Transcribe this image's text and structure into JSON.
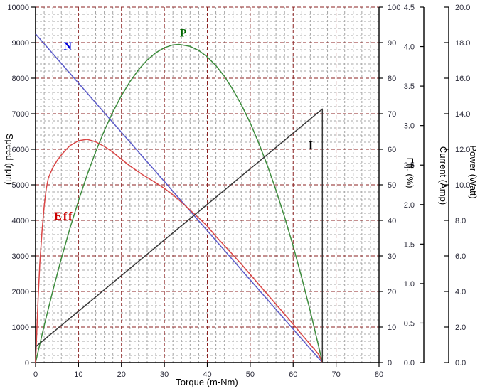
{
  "chart_data": {
    "type": "line",
    "title": "",
    "grid": {
      "enabled": true,
      "minor_color": "#a4a4a4",
      "major_color": "#8b2222",
      "style": "dashed"
    },
    "background_color": "#ffffff",
    "x_axis": {
      "label": "Torque (m-Nm)",
      "min": 0,
      "max": 80,
      "major_step": 10,
      "minor_step": 2,
      "ticks": [
        0,
        10,
        20,
        30,
        40,
        50,
        60,
        70,
        80
      ],
      "tick_labels": [
        "0",
        "10",
        "20",
        "30",
        "40",
        "50",
        "60",
        "70",
        "80"
      ]
    },
    "axes": {
      "speed": {
        "label": "Speed (rpm)",
        "side": "left",
        "min": 0,
        "max": 10000,
        "major_step": 1000,
        "minor_step": 200,
        "ticks": [
          0,
          1000,
          2000,
          3000,
          4000,
          5000,
          6000,
          7000,
          8000,
          9000,
          10000
        ],
        "tick_labels": [
          "0",
          "1000",
          "2000",
          "3000",
          "4000",
          "5000",
          "6000",
          "7000",
          "8000",
          "9000",
          "10000"
        ],
        "label_color": "#000000"
      },
      "eff": {
        "label": "Eff. (%)",
        "side": "right",
        "min": 0,
        "max": 100,
        "major_step": 10,
        "ticks": [
          0,
          10,
          20,
          30,
          40,
          50,
          60,
          70,
          80,
          90,
          100
        ],
        "tick_labels": [
          "0",
          "10",
          "20",
          "30",
          "40",
          "50",
          "60",
          "70",
          "80",
          "90",
          "100"
        ],
        "label_color": "#cc2233"
      },
      "current": {
        "label": "Current (Amp)",
        "side": "right",
        "min": 0,
        "max": 4.5,
        "major_step": 0.5,
        "ticks": [
          0,
          0.5,
          1.0,
          1.5,
          2.0,
          2.5,
          3.0,
          3.5,
          4.0,
          4.5
        ],
        "tick_labels": [
          "0.0",
          "0.5",
          "1.0",
          "1.5",
          "2.0",
          "2.5",
          "3.0",
          "3.5",
          "4.0",
          "4.5"
        ],
        "label_color": "#000000"
      },
      "power": {
        "label": "Power (Watt)",
        "side": "right",
        "min": 0,
        "max": 20,
        "major_step": 2,
        "ticks": [
          0,
          2,
          4,
          6,
          8,
          10,
          12,
          14,
          16,
          18,
          20
        ],
        "tick_labels": [
          "0.0",
          "2.0",
          "4.0",
          "6.0",
          "8.0",
          "10.0",
          "12.0",
          "14.0",
          "16.0",
          "18.0",
          "20.0"
        ],
        "label_color": "#2e8b2e"
      }
    },
    "series": [
      {
        "name": "N",
        "axis": "speed",
        "color": "#5a5ac8",
        "label": "N",
        "label_color": "#0000dd",
        "label_at": {
          "x": 7.5,
          "y": 8900
        },
        "points": [
          [
            0,
            9246
          ],
          [
            66.8,
            0
          ]
        ]
      },
      {
        "name": "P",
        "axis": "power",
        "color": "#3d8c3d",
        "label": "P",
        "label_color": "#006600",
        "label_at": {
          "x": 34.4,
          "y": 18.55
        },
        "points": [
          [
            0,
            0
          ],
          [
            2,
            2.08
          ],
          [
            4,
            4.03
          ],
          [
            6,
            5.85
          ],
          [
            8,
            7.55
          ],
          [
            10,
            9.11
          ],
          [
            12,
            10.55
          ],
          [
            14,
            11.86
          ],
          [
            16,
            13.04
          ],
          [
            18,
            14.1
          ],
          [
            20,
            15.02
          ],
          [
            22,
            15.81
          ],
          [
            24,
            16.48
          ],
          [
            26,
            17.02
          ],
          [
            28,
            17.43
          ],
          [
            30,
            17.71
          ],
          [
            32,
            17.87
          ],
          [
            33.4,
            17.9
          ],
          [
            36,
            17.79
          ],
          [
            38,
            17.56
          ],
          [
            40,
            17.2
          ],
          [
            42,
            16.71
          ],
          [
            44,
            16.1
          ],
          [
            46,
            15.35
          ],
          [
            48,
            14.48
          ],
          [
            50,
            13.48
          ],
          [
            52,
            12.35
          ],
          [
            54,
            11.09
          ],
          [
            56,
            9.7
          ],
          [
            58,
            8.19
          ],
          [
            60,
            6.55
          ],
          [
            62,
            4.78
          ],
          [
            64,
            2.88
          ],
          [
            66,
            0.85
          ],
          [
            66.8,
            0
          ]
        ]
      },
      {
        "name": "Eff",
        "axis": "eff",
        "color": "#d94545",
        "label": "Eff",
        "label_color": "#cc0000",
        "label_at": {
          "x": 6.6,
          "y": 41.2
        },
        "points": [
          [
            0,
            0
          ],
          [
            0.3,
            9
          ],
          [
            0.6,
            18
          ],
          [
            1,
            28
          ],
          [
            1.5,
            37
          ],
          [
            2,
            44
          ],
          [
            2.5,
            49
          ],
          [
            3,
            52
          ],
          [
            4,
            54.8
          ],
          [
            5,
            56.8
          ],
          [
            6,
            58.4
          ],
          [
            7,
            59.8
          ],
          [
            8,
            61
          ],
          [
            10,
            62.4
          ],
          [
            12,
            62.8
          ],
          [
            14,
            62.1
          ],
          [
            16,
            60.8
          ],
          [
            18,
            59.2
          ],
          [
            20,
            57.2
          ],
          [
            22,
            55.3
          ],
          [
            25,
            52.8
          ],
          [
            28,
            50.6
          ],
          [
            30,
            49
          ],
          [
            32,
            47.2
          ],
          [
            35,
            44
          ],
          [
            38,
            40.7
          ],
          [
            40,
            38.4
          ],
          [
            42,
            35.5
          ],
          [
            45,
            31.6
          ],
          [
            48,
            27.6
          ],
          [
            50,
            24.8
          ],
          [
            52,
            22
          ],
          [
            55,
            17.8
          ],
          [
            58,
            13.6
          ],
          [
            60,
            10.8
          ],
          [
            62,
            7.9
          ],
          [
            64,
            5.1
          ],
          [
            66,
            2.2
          ],
          [
            66.8,
            0
          ]
        ]
      },
      {
        "name": "I",
        "axis": "current",
        "color": "#383838",
        "label": "I",
        "label_color": "#000000",
        "label_at": {
          "x": 64.1,
          "y": 2.75
        },
        "points": [
          [
            0,
            0.2
          ],
          [
            66.8,
            3.21
          ],
          [
            66.8,
            0
          ]
        ]
      }
    ]
  }
}
